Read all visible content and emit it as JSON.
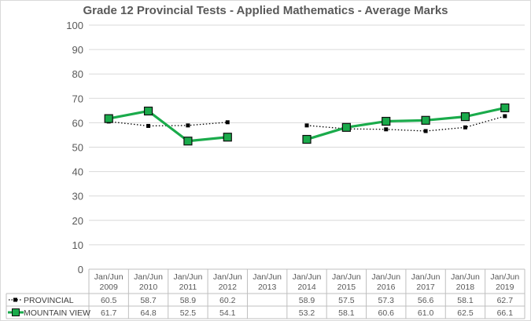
{
  "chart_data": {
    "type": "line",
    "title": "Grade 12 Provincial Tests - Applied Mathematics - Average Marks",
    "ylim": [
      0,
      100
    ],
    "yticks": [
      0,
      10,
      20,
      30,
      40,
      50,
      60,
      70,
      80,
      90,
      100
    ],
    "grid": true,
    "legend": "data-table-left",
    "categories": [
      [
        "Jan/Jun",
        "2009"
      ],
      [
        "Jan/Jun",
        "2010"
      ],
      [
        "Jan/Jun",
        "2011"
      ],
      [
        "Jan/Jun",
        "2012"
      ],
      [
        "Jan/Jun",
        "2013"
      ],
      [
        "Jan/Jun",
        "2014"
      ],
      [
        "Jan/Jun",
        "2015"
      ],
      [
        "Jan/Jun",
        "2016"
      ],
      [
        "Jan/Jun",
        "2017"
      ],
      [
        "Jan/Jun",
        "2018"
      ],
      [
        "Jan/Jun",
        "2019"
      ]
    ],
    "series": [
      {
        "name": "PROVINCIAL",
        "color": "#000000",
        "style": "dotted",
        "marker": "small-square",
        "values": [
          60.5,
          58.7,
          58.9,
          60.2,
          null,
          58.9,
          57.5,
          57.3,
          56.6,
          58.1,
          62.7
        ],
        "labels": [
          "60.5",
          "58.7",
          "58.9",
          "60.2",
          "",
          "58.9",
          "57.5",
          "57.3",
          "56.6",
          "58.1",
          "62.7"
        ]
      },
      {
        "name": "MOUNTAIN VIEW",
        "color": "#1aab4b",
        "style": "solid",
        "marker": "large-square",
        "values": [
          61.7,
          64.8,
          52.5,
          54.1,
          null,
          53.2,
          58.1,
          60.6,
          61.0,
          62.5,
          66.1
        ],
        "labels": [
          "61.7",
          "64.8",
          "52.5",
          "54.1",
          "",
          "53.2",
          "58.1",
          "60.6",
          "61.0",
          "62.5",
          "66.1"
        ]
      }
    ]
  },
  "colors": {
    "gridline": "#d9d9d9",
    "tick_text": "#595959",
    "title_text": "#595959",
    "table_border": "#bfbfbf"
  }
}
